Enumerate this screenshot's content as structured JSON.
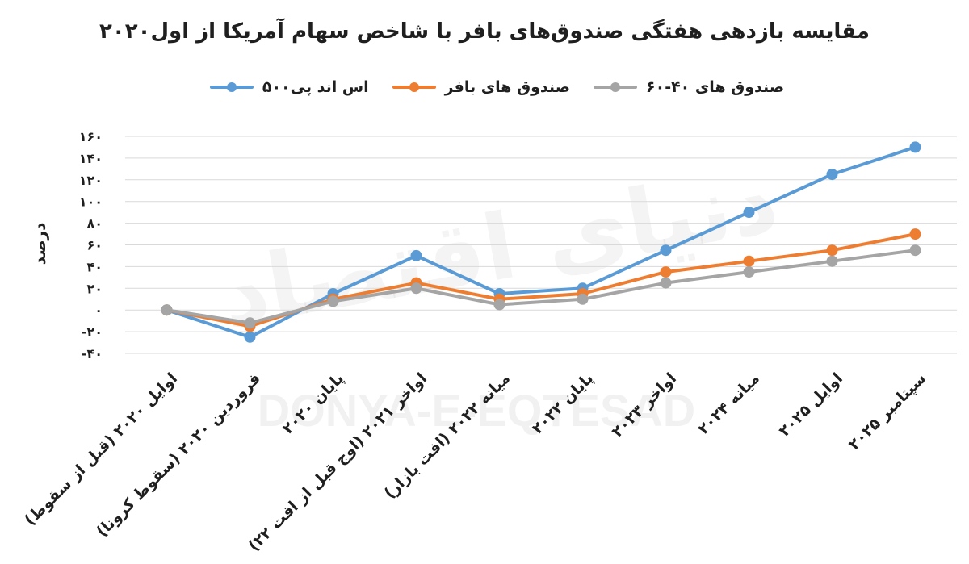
{
  "style": {
    "background": "#ffffff",
    "text_color": "#1f1f1f",
    "grid_color": "#d9d9d9"
  },
  "watermark": {
    "persian": "دنیای اقتصاد",
    "latin": "DONYA-E-EQTESAD"
  },
  "chart_data": {
    "type": "line",
    "title": "مقایسه بازدهی هفتگی صندوق‌های بافر با شاخص سهام آمریکا از اول۲۰۲۰",
    "ylabel": "درصد",
    "ylim": [
      -40,
      160
    ],
    "yticks": [
      -40,
      -20,
      0,
      20,
      40,
      60,
      80,
      100,
      120,
      140,
      160
    ],
    "ytick_labels": [
      "-۴۰",
      "-۲۰",
      "۰",
      "۲۰",
      "۴۰",
      "۶۰",
      "۸۰",
      "۱۰۰",
      "۱۲۰",
      "۱۴۰",
      "۱۶۰"
    ],
    "grid": true,
    "legend_position": "top",
    "categories": [
      "اوایل ۲۰۲۰ (قبل از سقوط)",
      "فروردین ۲۰۲۰ (سقوط کرونا)",
      "پایان ۲۰۲۰",
      "اواخر ۲۰۲۱ (اوج قبل از افت ۲۲)",
      "میانه ۲۰۲۲ (افت بازار)",
      "پایان ۲۰۲۲",
      "اواخر ۲۰۲۳",
      "میانه ۲۰۲۴",
      "اوایل ۲۰۲۵",
      "سپتامبر ۲۰۲۵"
    ],
    "series": [
      {
        "name": "اس اند پی۵۰۰",
        "color": "#5B9BD5",
        "values": [
          0,
          -25,
          15,
          50,
          15,
          20,
          55,
          90,
          125,
          150
        ]
      },
      {
        "name": "صندوق های بافر",
        "color": "#ED7D31",
        "values": [
          0,
          -15,
          10,
          25,
          10,
          15,
          35,
          45,
          55,
          70
        ]
      },
      {
        "name": "صندوق های ۴۰-۶۰",
        "color": "#A5A5A5",
        "values": [
          0,
          -12,
          8,
          20,
          5,
          10,
          25,
          35,
          45,
          55
        ]
      }
    ]
  }
}
